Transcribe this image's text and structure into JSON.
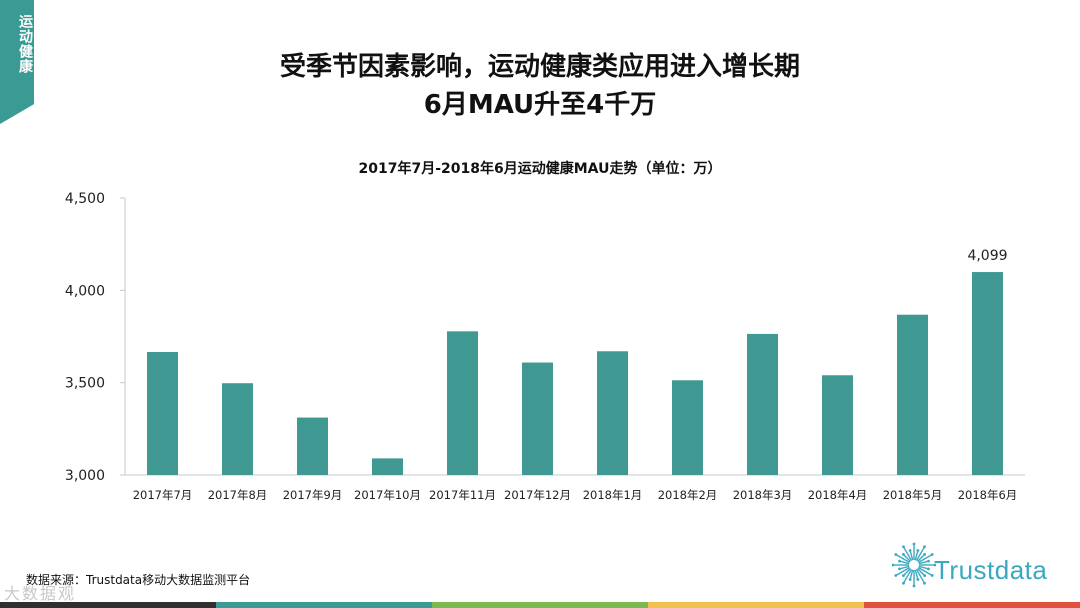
{
  "side_tab": {
    "label": "运动健康"
  },
  "headline": {
    "line1": "受季节因素影响，运动健康类应用进入增长期",
    "line2": "6月MAU升至4千万"
  },
  "colors": {
    "accent": "#3a9a94",
    "bar": "#3f9892",
    "logo": "#3aa8c0",
    "footer": [
      "#2f2f2f",
      "#3a9a94",
      "#79b94f",
      "#f2c04e",
      "#e0523f"
    ]
  },
  "chart_data": {
    "type": "bar",
    "title": "2017年7月-2018年6月运动健康MAU走势（单位：万）",
    "categories": [
      "2017年7月",
      "2017年8月",
      "2017年9月",
      "2017年10月",
      "2017年11月",
      "2017年12月",
      "2018年1月",
      "2018年2月",
      "2018年3月",
      "2018年4月",
      "2018年5月",
      "2018年6月"
    ],
    "values": [
      3666,
      3497,
      3311,
      3090,
      3778,
      3609,
      3670,
      3513,
      3764,
      3540,
      3868,
      4099
    ],
    "ylim": [
      3000,
      4500
    ],
    "yticks": [
      3000,
      3500,
      4000,
      4500
    ],
    "ytick_labels": [
      "3,000",
      "3,500",
      "4,000",
      "4,500"
    ],
    "data_labels": [
      {
        "index": 11,
        "text": "4,099"
      }
    ],
    "grid": false,
    "legend": "none"
  },
  "source": {
    "text": "数据来源：Trustdata移动大数据监测平台"
  },
  "logo": {
    "name": "Trustdata",
    "icon": "starburst-icon"
  },
  "watermark": {
    "text": "大数据观"
  }
}
